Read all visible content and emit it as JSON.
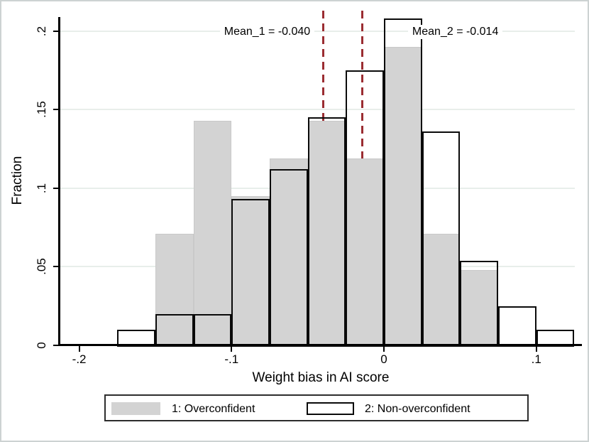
{
  "figure": {
    "background": "#ffffff",
    "border_color": "#cdd2d2"
  },
  "chart_data": {
    "type": "bar",
    "subtype": "overlaid-histogram",
    "title": "",
    "xlabel": "Weight bias in AI score",
    "ylabel": "Fraction",
    "bin_width": 0.025,
    "bin_left_edges": [
      -0.175,
      -0.15,
      -0.125,
      -0.1,
      -0.075,
      -0.05,
      -0.025,
      0,
      0.025,
      0.05,
      0.075,
      0.1
    ],
    "series": [
      {
        "name": "1: Overconfident",
        "style": "filled",
        "fill_color": "#d3d3d3",
        "edge_color": "#c9c9c9",
        "values": [
          0,
          0.071,
          0.143,
          0.095,
          0.119,
          0.143,
          0.119,
          0.19,
          0.071,
          0.048,
          0,
          0
        ]
      },
      {
        "name": "2: Non-overconfident",
        "style": "hollow",
        "edge_color": "#0a0a0a",
        "values": [
          0.01,
          0.02,
          0.02,
          0.093,
          0.112,
          0.145,
          0.175,
          0.208,
          0.136,
          0.054,
          0.025,
          0.01
        ]
      }
    ],
    "x_ticks": [
      {
        "label": "-.2",
        "value": -0.2
      },
      {
        "label": "-.1",
        "value": -0.1
      },
      {
        "label": "0",
        "value": 0
      },
      {
        "label": ".1",
        "value": 0.1
      }
    ],
    "y_ticks": [
      {
        "label": "0",
        "value": 0
      },
      {
        "label": ".05",
        "value": 0.05
      },
      {
        "label": ".1",
        "value": 0.1
      },
      {
        "label": ".15",
        "value": 0.15
      },
      {
        "label": ".2",
        "value": 0.2
      }
    ],
    "xlim": [
      -0.2125,
      0.13
    ],
    "ylim": [
      0,
      0.209
    ],
    "grid": true,
    "gridline_color": "#e8eeea",
    "mean_lines": [
      {
        "label": "Mean_1 = -0.040",
        "value": -0.04,
        "color": "#9b2d32",
        "label_anchor": "right",
        "label_x": -0.0437
      },
      {
        "label": "Mean_2 = -0.014",
        "value": -0.014,
        "color": "#9b2d32",
        "label_anchor": "left",
        "label_x": 0.0158
      }
    ],
    "legend": {
      "position": "bottom",
      "entries": [
        "1: Overconfident",
        "2: Non-overconfident"
      ]
    }
  }
}
